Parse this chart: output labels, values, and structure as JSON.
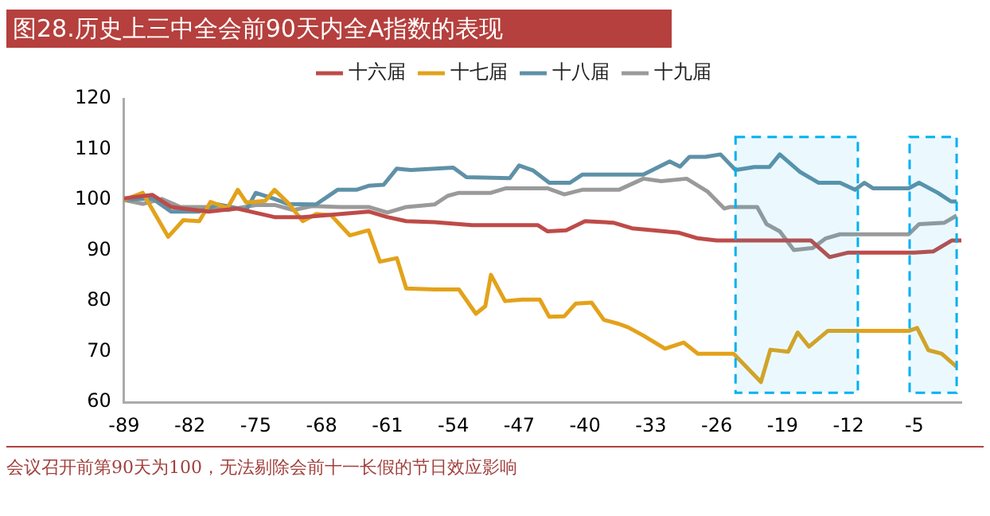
{
  "chart_data": {
    "type": "line",
    "title": "图28.历史上三中全会前90天内全A指数的表现",
    "annotations": [
      "会议召开前第90天为100，无法剔除会前十一长假的节日效应影响"
    ],
    "xlim": [
      -89,
      0
    ],
    "xticks": [
      -89,
      -82,
      -75,
      -68,
      -61,
      -54,
      -47,
      -40,
      -33,
      -26,
      -19,
      -12,
      -5
    ],
    "ylim": [
      60,
      120
    ],
    "yticks": [
      60,
      70,
      80,
      90,
      100,
      110,
      120
    ],
    "grid": false,
    "legend": "top",
    "marker": "none",
    "line_style": "solid",
    "bands": [
      {
        "axis": "x",
        "from": -24,
        "to": -11,
        "color": "#00b0f0"
      },
      {
        "axis": "x",
        "from": -5.5,
        "to": -0.5,
        "color": "#00b0f0"
      }
    ],
    "series": [
      {
        "name": "十六届",
        "color": "#be4b48",
        "x": [
          -89,
          -86,
          -84,
          -80,
          -77,
          -73,
          -70,
          -66,
          -63,
          -61,
          -59,
          -56,
          -52,
          -48,
          -45,
          -44,
          -42,
          -40,
          -37,
          -35,
          -30,
          -28,
          -26,
          -20,
          -16,
          -14,
          -12,
          -8,
          -5,
          -3,
          -1,
          0
        ],
        "values": [
          100.3,
          101,
          98.6,
          97.7,
          98.3,
          96.6,
          96.6,
          97.2,
          97.7,
          96.6,
          95.8,
          95.6,
          95,
          95,
          95,
          93.8,
          94,
          95.8,
          95.5,
          94.4,
          93.5,
          92.4,
          92,
          92,
          92,
          88.7,
          89.6,
          89.6,
          89.6,
          89.8,
          92,
          92
        ]
      },
      {
        "name": "十七届",
        "color": "#e3a21a",
        "x": [
          -89,
          -87,
          -84.3,
          -82.7,
          -81,
          -79.8,
          -78,
          -76.9,
          -76,
          -74,
          -73,
          -71.6,
          -70,
          -68.6,
          -67,
          -65,
          -63,
          -61.8,
          -60,
          -59,
          -56,
          -53.4,
          -51.6,
          -50.6,
          -50,
          -48.5,
          -46.7,
          -44.8,
          -43.8,
          -42.2,
          -41,
          -39.3,
          -38,
          -36.4,
          -35.4,
          -33.8,
          -31.5,
          -29.5,
          -28,
          -24.2,
          -21.3,
          -20.3,
          -18.4,
          -17.4,
          -16.2,
          -14.2,
          -5.6,
          -4.7,
          -3.5,
          -2.1,
          -0.5
        ],
        "values": [
          100,
          101.4,
          92.7,
          96,
          95.8,
          99.6,
          98.4,
          102,
          99.5,
          99.8,
          102,
          99.5,
          95.8,
          97.2,
          97,
          93,
          94,
          87.8,
          88.5,
          82.5,
          82.3,
          82.3,
          77.5,
          79,
          85.2,
          80,
          80.3,
          80.3,
          76.9,
          77,
          79.5,
          79.7,
          76.3,
          75.5,
          74.8,
          73.2,
          70.6,
          71.8,
          69.6,
          69.6,
          64,
          70.4,
          70,
          73.8,
          71,
          74.1,
          74.1,
          74.7,
          70.3,
          69.6,
          67
        ]
      },
      {
        "name": "十八届",
        "color": "#5e91a8",
        "x": [
          -89,
          -86,
          -84,
          -81,
          -79,
          -76,
          -75,
          -73,
          -71.6,
          -68.6,
          -66.3,
          -64.3,
          -63,
          -61.4,
          -60,
          -58.5,
          -54,
          -52.6,
          -48,
          -47,
          -45.5,
          -43.8,
          -41.6,
          -40.3,
          -33.8,
          -31,
          -29.9,
          -28.9,
          -27.2,
          -25.6,
          -24,
          -22,
          -20.4,
          -19.3,
          -17.2,
          -15.2,
          -12.9,
          -11.3,
          -10.3,
          -9.4,
          -5.6,
          -4.5,
          -2.5,
          -1.1,
          -0.5
        ],
        "values": [
          100,
          100.3,
          97.7,
          97.7,
          99.1,
          98,
          101.4,
          100.2,
          99.2,
          99.1,
          102,
          102,
          102.8,
          103,
          106.2,
          105.9,
          106.4,
          104.5,
          104.3,
          106.8,
          105.8,
          103.4,
          103.4,
          105,
          105,
          107.6,
          106.6,
          108.5,
          108.5,
          109,
          105.9,
          106.5,
          106.5,
          109,
          105.6,
          103.4,
          103.4,
          102,
          103.4,
          102.3,
          102.3,
          103.4,
          101.4,
          99.7,
          99.7
        ]
      },
      {
        "name": "十九届",
        "color": "#9a9a9a",
        "x": [
          -89,
          -87,
          -85,
          -83,
          -80,
          -78,
          -75,
          -73,
          -71,
          -69,
          -66,
          -63,
          -61,
          -59,
          -56,
          -54.6,
          -53.4,
          -50,
          -48.4,
          -44,
          -42.2,
          -40.3,
          -36.4,
          -33.8,
          -31.9,
          -29.2,
          -27,
          -25.2,
          -24.6,
          -21.7,
          -20.7,
          -19.3,
          -17.8,
          -15.8,
          -14.4,
          -12.9,
          -5.6,
          -4.5,
          -1.8,
          -0.5
        ],
        "values": [
          100,
          99.2,
          100.2,
          98.6,
          98.6,
          98,
          99,
          99,
          98,
          98.8,
          98.6,
          98.6,
          97.5,
          98.6,
          99.1,
          100.8,
          101.4,
          101.4,
          102.3,
          102.3,
          101.1,
          102,
          102,
          104.2,
          103.7,
          104.2,
          101.7,
          98.3,
          98.6,
          98.6,
          95.2,
          93.8,
          90.1,
          90.5,
          92.4,
          93.2,
          93.2,
          95.2,
          95.5,
          96.9
        ]
      }
    ]
  }
}
